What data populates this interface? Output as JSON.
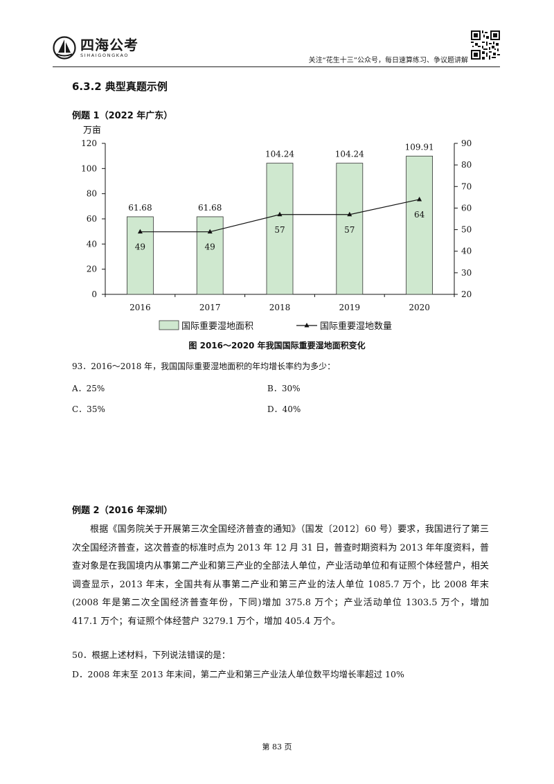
{
  "header": {
    "logo_cn": "四海公考",
    "logo_en": "SIHAIGONGKAO",
    "note": "关注“花生十三”公众号，每日速算练习、争议题讲解"
  },
  "section_title": "6.3.2  典型真题示例",
  "example1": {
    "title": "例题 1（2022 年广东）",
    "caption": "图   2016～2020 年我国国际重要湿地面积变化",
    "question": "93．2016～2018 年，我国国际重要湿地面积的年均增长率约为多少：",
    "options": {
      "A": "A．25%",
      "B": "B．30%",
      "C": "C．35%",
      "D": "D．40%"
    }
  },
  "chart_data": {
    "type": "bar",
    "unit_label": "万亩",
    "categories": [
      "2016",
      "2017",
      "2018",
      "2019",
      "2020"
    ],
    "series": [
      {
        "name": "国际重要湿地面积",
        "type": "bar",
        "axis": "left",
        "values": [
          61.68,
          61.68,
          104.24,
          104.24,
          109.91
        ],
        "labels": [
          "61.68",
          "61.68",
          "104.24",
          "104.24",
          "109.91"
        ],
        "color": "#cfe8cf"
      },
      {
        "name": "国际重要湿地数量",
        "type": "line",
        "axis": "right",
        "values": [
          49,
          49,
          57,
          57,
          64
        ],
        "labels": [
          "49",
          "49",
          "57",
          "57",
          "64"
        ],
        "color": "#111111"
      }
    ],
    "left_axis": {
      "ylim": [
        0,
        120
      ],
      "ticks": [
        0,
        20,
        40,
        60,
        80,
        100,
        120
      ]
    },
    "right_axis": {
      "ylim": [
        20,
        90
      ],
      "ticks": [
        20,
        30,
        40,
        50,
        60,
        70,
        80,
        90
      ]
    },
    "legend_position": "bottom",
    "grid": false
  },
  "example2": {
    "title": "例题 2（2016 年深圳）",
    "paragraph": "根据《国务院关于开展第三次全国经济普查的通知》（国发〔2012〕60 号）要求，我国进行了第三次全国经济普查，这次普查的标准时点为 2013 年 12 月 31 日，普查时期资料为 2013 年年度资料，普查对象是在我国境内从事第二产业和第三产业的全部法人单位，产业活动单位和有证照个体经营户，相关调查显示，2013 年末，全国共有从事第二产业和第三产业的法人单位 1085.7 万个，比 2008 年末(2008 年是第二次全国经济普查年份，下同)增加 375.8 万个；产业活动单位 1303.5 万个，增加 417.1 万个；有证照个体经营户 3279.1 万个，增加 405.4 万个。",
    "question": "50．根据上述材料，下列说法错误的是：",
    "option_D": "D．2008 年末至 2013 年末间，第二产业和第三产业法人单位数平均增长率超过 10%"
  },
  "page_number": "第 83 页"
}
